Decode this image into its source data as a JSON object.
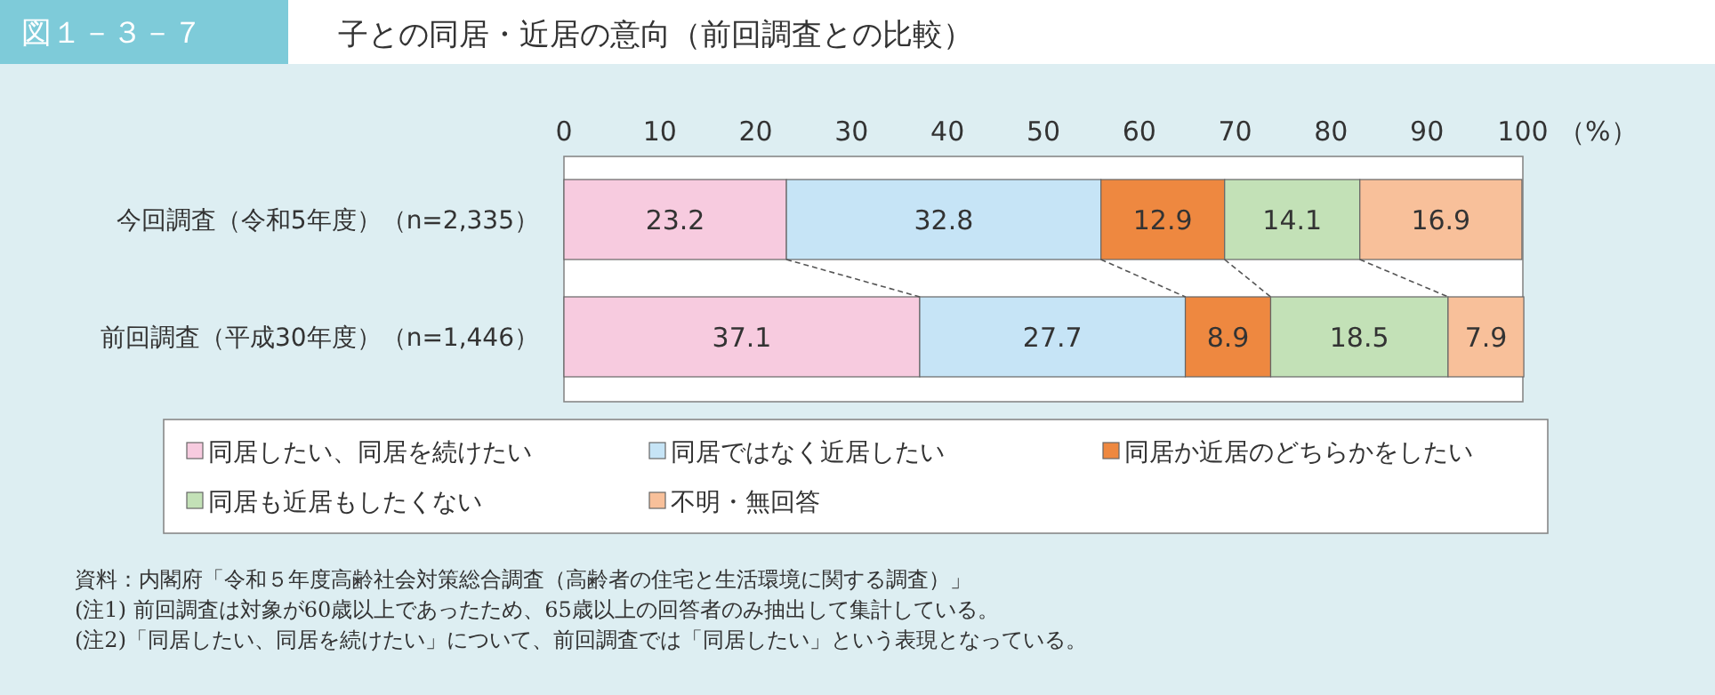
{
  "chart_data": {
    "type": "bar",
    "orientation": "horizontal",
    "stacked": true,
    "subtitle": "図１－３－７",
    "title": "子との同居・近居の意向（前回調査との比較）",
    "xlabel": "（%）",
    "categories": [
      "今回調査（令和5年度）（n=2,335）",
      "前回調査（平成30年度）（n=1,446）"
    ],
    "series": [
      {
        "name": "同居したい、同居を続けたい",
        "color": "#f7cbdf",
        "values": [
          23.2,
          37.1
        ]
      },
      {
        "name": "同居ではなく近居したい",
        "color": "#c6e4f6",
        "values": [
          32.8,
          27.7
        ]
      },
      {
        "name": "同居か近居のどちらかをしたい",
        "color": "#ee8840",
        "values": [
          12.9,
          8.9
        ]
      },
      {
        "name": "同居も近居もしたくない",
        "color": "#c3e1b7",
        "values": [
          14.1,
          18.5
        ]
      },
      {
        "name": "不明・無回答",
        "color": "#f8c09a",
        "values": [
          16.9,
          7.9
        ]
      }
    ],
    "xlim": [
      0,
      100
    ],
    "xticks": [
      0,
      10,
      20,
      30,
      40,
      50,
      60,
      70,
      80,
      90,
      100
    ],
    "data_labels": true,
    "legend": "bottom",
    "annotations": [
      "資料：内閣府「令和５年度高齢社会対策総合調査（高齢者の住宅と生活環境に関する調査）」",
      "(注1) 前回調査は対象が60歳以上であったため、65歳以上の回答者のみ抽出して集計している。",
      "(注2)「同居したい、同居を続けたい」について、前回調査では「同居したい」という表現となっている。"
    ]
  }
}
